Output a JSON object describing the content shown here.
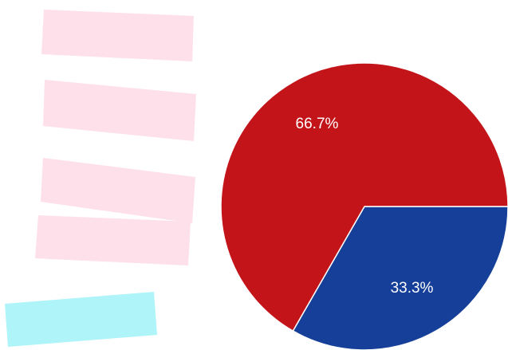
{
  "chart_data": {
    "type": "pie",
    "categories": [
      null,
      null
    ],
    "values": [
      33.3,
      66.7
    ],
    "value_labels": [
      "33.3%",
      "66.7%"
    ],
    "colors": [
      "#153f98",
      "#c31419"
    ]
  }
}
